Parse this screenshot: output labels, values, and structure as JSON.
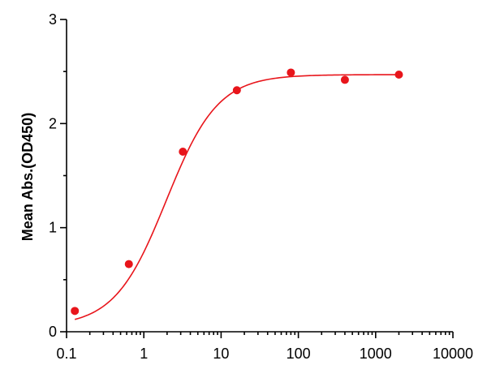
{
  "chart_data": {
    "type": "scatter",
    "title": "",
    "xlabel": "",
    "ylabel": "Mean Abs.(OD450)",
    "x_scale": "log",
    "xlim": [
      0.1,
      10000
    ],
    "ylim": [
      0,
      3
    ],
    "x_ticks": [
      {
        "value": 0.1,
        "label": "0.1"
      },
      {
        "value": 1,
        "label": "1"
      },
      {
        "value": 10,
        "label": "10"
      },
      {
        "value": 100,
        "label": "100"
      },
      {
        "value": 1000,
        "label": "1000"
      },
      {
        "value": 10000,
        "label": "10000"
      }
    ],
    "y_ticks": [
      {
        "value": 0,
        "label": "0"
      },
      {
        "value": 1,
        "label": "1"
      },
      {
        "value": 2,
        "label": "2"
      },
      {
        "value": 3,
        "label": "3"
      }
    ],
    "series": [
      {
        "color": "#e8151b",
        "points": [
          {
            "x": 0.128,
            "y": 0.2
          },
          {
            "x": 0.64,
            "y": 0.65
          },
          {
            "x": 3.2,
            "y": 1.73
          },
          {
            "x": 16,
            "y": 2.32
          },
          {
            "x": 80,
            "y": 2.49
          },
          {
            "x": 400,
            "y": 2.42
          },
          {
            "x": 2000,
            "y": 2.47
          }
        ],
        "fit": {
          "model": "4PL",
          "bottom": 0.05,
          "top": 2.47,
          "ec50": 1.95,
          "hill": 1.3,
          "x_range": [
            0.128,
            2000
          ]
        }
      }
    ],
    "grid": false,
    "legend": "none"
  }
}
